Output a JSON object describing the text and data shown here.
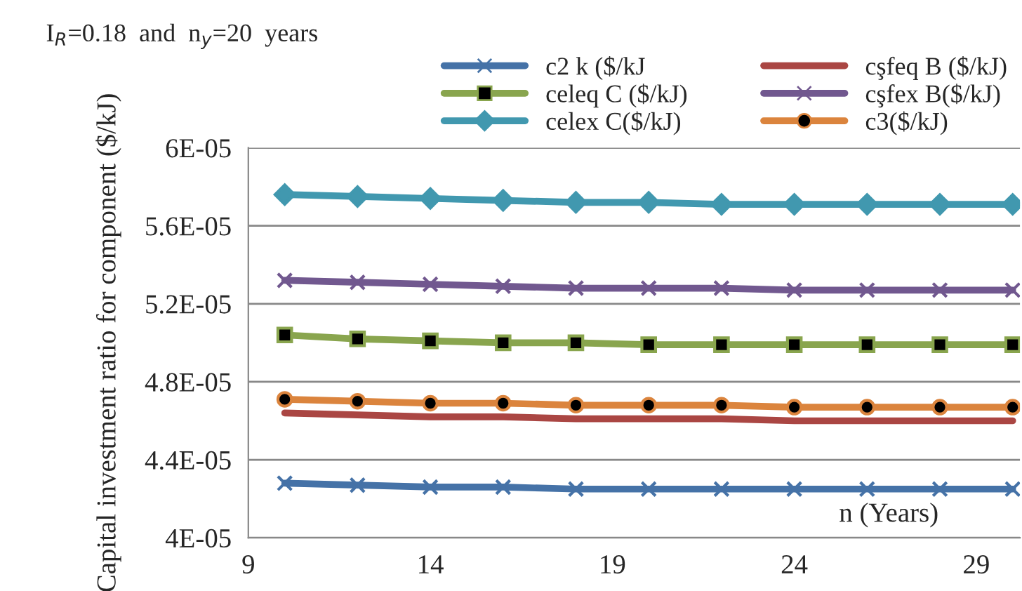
{
  "chart_data": {
    "type": "line",
    "title": "I$_{R}$=0.18  and  n$_{y}$=20  years",
    "xlabel": "n (Years)",
    "ylabel": "Capital investment ratio for component ($/kJ)",
    "x": [
      10,
      12,
      14,
      16,
      18,
      20,
      22,
      24,
      26,
      28,
      30
    ],
    "series": [
      {
        "name": "c2 k ($/kJ",
        "color": "#4572a7",
        "marker": "cross",
        "values": [
          4.28e-05,
          4.27e-05,
          4.26e-05,
          4.26e-05,
          4.25e-05,
          4.25e-05,
          4.25e-05,
          4.25e-05,
          4.25e-05,
          4.25e-05,
          4.25e-05
        ]
      },
      {
        "name": "cşfeq B ($/kJ)",
        "color": "#aa4643",
        "marker": "none",
        "values": [
          4.64e-05,
          4.63e-05,
          4.62e-05,
          4.62e-05,
          4.61e-05,
          4.61e-05,
          4.61e-05,
          4.6e-05,
          4.6e-05,
          4.6e-05,
          4.6e-05
        ]
      },
      {
        "name": "celeq C ($/kJ)",
        "color": "#89a54e",
        "marker": "square",
        "values": [
          5.04e-05,
          5.02e-05,
          5.01e-05,
          5e-05,
          5e-05,
          4.99e-05,
          4.99e-05,
          4.99e-05,
          4.99e-05,
          4.99e-05,
          4.99e-05
        ]
      },
      {
        "name": "cşfex B($/kJ)",
        "color": "#71588f",
        "marker": "cross",
        "values": [
          5.32e-05,
          5.31e-05,
          5.3e-05,
          5.29e-05,
          5.28e-05,
          5.28e-05,
          5.28e-05,
          5.27e-05,
          5.27e-05,
          5.27e-05,
          5.27e-05
        ]
      },
      {
        "name": "celex C($/kJ)",
        "color": "#4198af",
        "marker": "diamond",
        "values": [
          5.76e-05,
          5.75e-05,
          5.74e-05,
          5.73e-05,
          5.72e-05,
          5.72e-05,
          5.71e-05,
          5.71e-05,
          5.71e-05,
          5.71e-05,
          5.71e-05
        ]
      },
      {
        "name": "c3($/kJ)",
        "color": "#db843d",
        "marker": "circle",
        "values": [
          4.71e-05,
          4.7e-05,
          4.69e-05,
          4.69e-05,
          4.68e-05,
          4.68e-05,
          4.68e-05,
          4.67e-05,
          4.67e-05,
          4.67e-05,
          4.67e-05
        ]
      }
    ],
    "xlim": [
      9,
      30.2
    ],
    "xticks": [
      9,
      14,
      19,
      24,
      29
    ],
    "ylim": [
      4e-05,
      6e-05
    ],
    "yticks": [
      {
        "value": 4e-05,
        "label": "4E-05"
      },
      {
        "value": 4.4e-05,
        "label": "4.4E-05"
      },
      {
        "value": 4.8e-05,
        "label": "4.8E-05"
      },
      {
        "value": 5.2e-05,
        "label": "5.2E-05"
      },
      {
        "value": 5.6e-05,
        "label": "5.6E-05"
      },
      {
        "value": 6e-05,
        "label": "6E-05"
      }
    ],
    "grid": "y",
    "legend": "top right"
  }
}
